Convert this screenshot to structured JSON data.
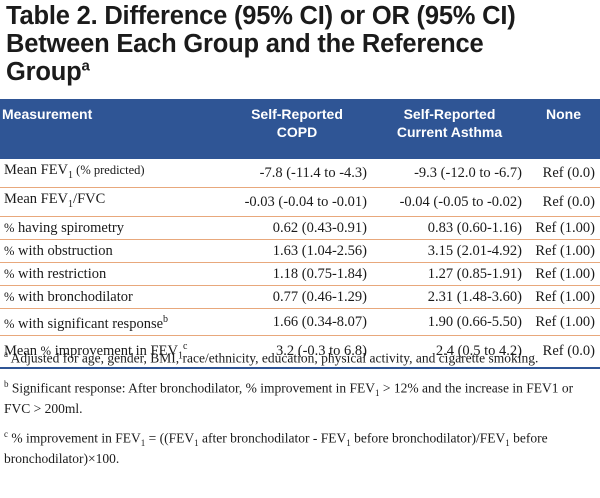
{
  "title": {
    "line1": "Table 2. Difference (95% CI) or OR (95% CI)",
    "line2": "Between Each Group and the Reference",
    "line3": "Group",
    "sup": "a"
  },
  "header": {
    "col0": "Measurement",
    "col1_line1": "Self-Reported",
    "col1_line2": "COPD",
    "col2_line1": "Self-Reported",
    "col2_line2": "Current Asthma",
    "col3": "None"
  },
  "rows": [
    {
      "label": "Mean FEV",
      "sub": "1",
      "suffix": " (% predicted)",
      "copd": "-7.8 (-11.4 to -4.3)",
      "asthma": "-9.3 (-12.0 to -6.7)",
      "none": "Ref (0.0)"
    },
    {
      "label": "Mean FEV",
      "sub": "1",
      "suffix": "/FVC",
      "copd": "-0.03 (-0.04 to -0.01)",
      "asthma": "-0.04 (-0.05 to -0.02)",
      "none": "Ref (0.0)"
    },
    {
      "label": "having spirometry",
      "copd": "0.62 (0.43-0.91)",
      "asthma": "0.83 (0.60-1.16)",
      "none": "Ref (1.00)"
    },
    {
      "label": "with obstruction",
      "copd": "1.63 (1.04-2.56)",
      "asthma": "3.15 (2.01-4.92)",
      "none": "Ref (1.00)"
    },
    {
      "label": "with restriction",
      "copd": "1.18 (0.75-1.84)",
      "asthma": "1.27 (0.85-1.91)",
      "none": "Ref (1.00)"
    },
    {
      "label": "with bronchodilator",
      "copd": "0.77 (0.46-1.29)",
      "asthma": "2.31 (1.48-3.60)",
      "none": "Ref (1.00)"
    },
    {
      "label": "with significant response",
      "sup": "b",
      "copd": "1.66 (0.34-8.07)",
      "asthma": "1.90 (0.66-5.50)",
      "none": "Ref (1.00)"
    },
    {
      "label": "Mean ",
      "mid": "improvement in FEV",
      "sub": "1",
      "sup": "c",
      "copd": "3.2 (-0.3 to 6.8)",
      "asthma": "2.4 (0.5 to 4.2)",
      "none": "Ref (0.0)"
    }
  ],
  "pct_sign": "%",
  "notes": {
    "a_mark": "a",
    "a_text": " Adjusted for age, gender, BMI, race/ethnicity, education, physical activity, and cigarette smoking.",
    "b_mark": "b",
    "b_text1": " Significant response: After bronchodilator, % improvement in FEV",
    "b_sub": "1",
    "b_text2": " > 12% and the increase in FEV1 or FVC > 200ml.",
    "c_mark": "c",
    "c_text1": " % improvement in FEV",
    "c_sub1": "1",
    "c_text2": " = ((FEV",
    "c_sub2": "1",
    "c_text3": " after bronchodilator - FEV",
    "c_sub3": "1",
    "c_text4": " before bronchodilator)/FEV",
    "c_sub4": "1",
    "c_text5": " before bronchodilator)×100."
  }
}
